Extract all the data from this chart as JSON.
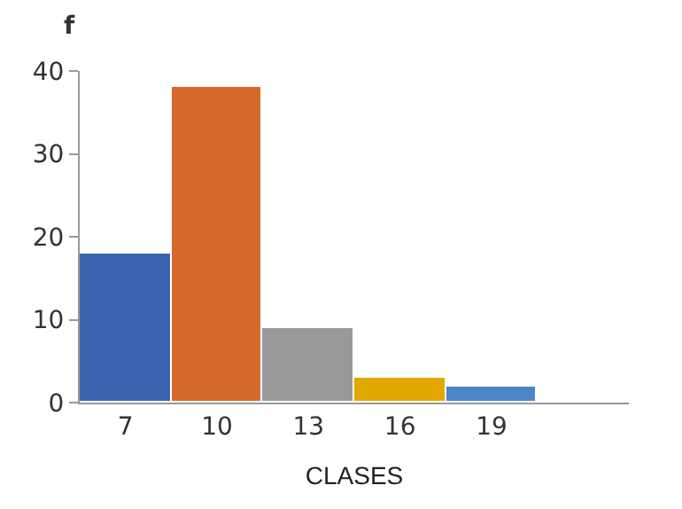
{
  "chart_data": {
    "type": "bar",
    "ylabel": "f",
    "xlabel": "CLASES",
    "categories": [
      "7",
      "10",
      "13",
      "16",
      "19",
      null
    ],
    "values": [
      18,
      38,
      9,
      3,
      2,
      null
    ],
    "colors": [
      "#3c64ae",
      "#d46b2a",
      "#999999",
      "#e2a800",
      "#4a86c5",
      "#4a86c5"
    ],
    "ylim": [
      0,
      40
    ],
    "yticks": [
      0,
      10,
      20,
      30,
      40
    ]
  }
}
